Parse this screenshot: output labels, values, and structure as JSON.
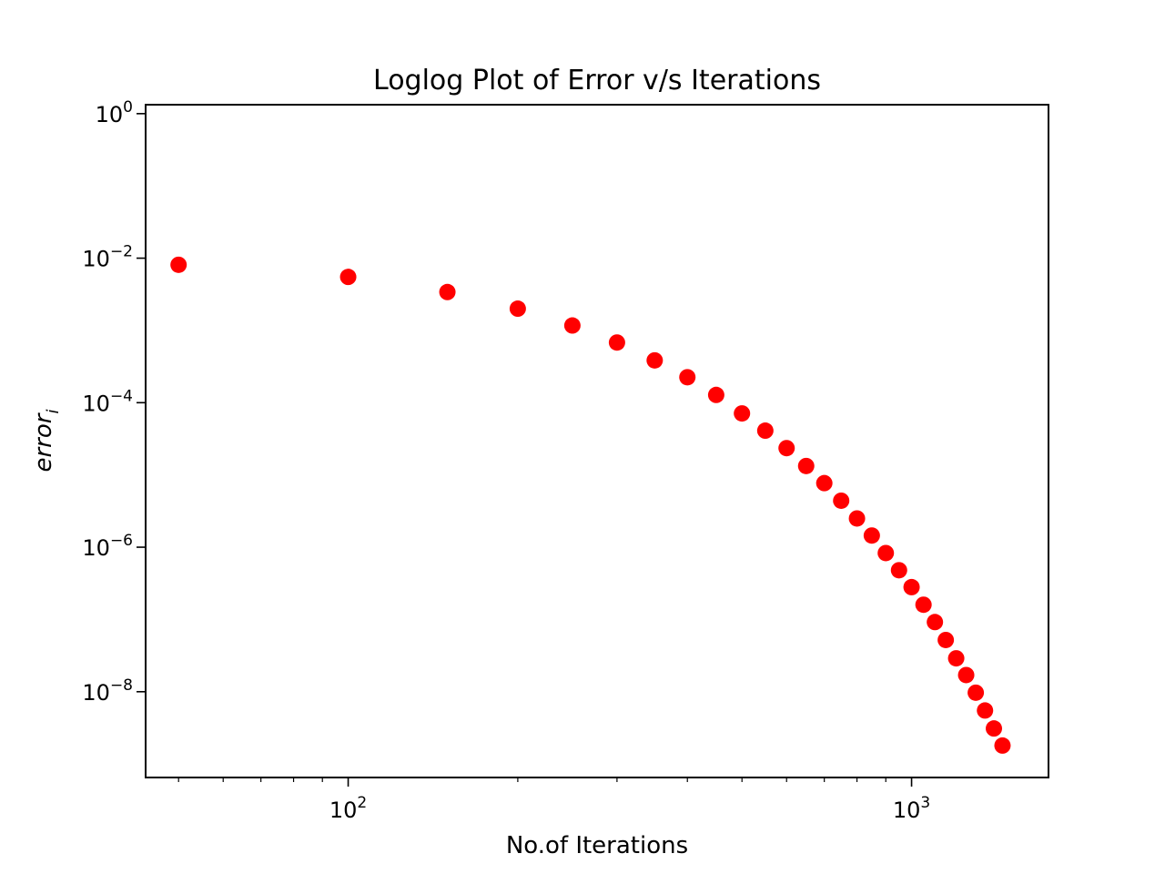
{
  "chart_data": {
    "type": "scatter",
    "title": "Loglog Plot of Error v/s Iterations",
    "xlabel": "No.of Iterations",
    "ylabel_main": "error",
    "ylabel_sub": "i",
    "x_scale": "log",
    "y_scale": "log",
    "xlim": [
      43.7,
      1750
    ],
    "ylim": [
      6.5e-10,
      1.33
    ],
    "grid": false,
    "marker_color": "#ff0000",
    "x_ticks": [
      {
        "value": 100,
        "base": "10",
        "exp": "2"
      },
      {
        "value": 1000,
        "base": "10",
        "exp": "3"
      }
    ],
    "y_ticks": [
      {
        "value": 1,
        "base": "10",
        "exp": "0"
      },
      {
        "value": 0.01,
        "base": "10",
        "exp": "−2"
      },
      {
        "value": 0.0001,
        "base": "10",
        "exp": "−4"
      },
      {
        "value": 1e-06,
        "base": "10",
        "exp": "−6"
      },
      {
        "value": 1e-08,
        "base": "10",
        "exp": "−8"
      }
    ],
    "x": [
      50,
      100,
      150,
      200,
      250,
      300,
      350,
      400,
      450,
      500,
      550,
      600,
      650,
      700,
      750,
      800,
      850,
      900,
      950,
      1000,
      1050,
      1100,
      1150,
      1200,
      1250,
      1300,
      1350,
      1400,
      1450
    ],
    "y": [
      0.0081,
      0.0055,
      0.0034,
      0.002,
      0.00117,
      0.00068,
      0.000385,
      0.000225,
      0.000128,
      7.1e-05,
      4.1e-05,
      2.35e-05,
      1.33e-05,
      7.7e-06,
      4.4e-06,
      2.5e-06,
      1.45e-06,
      8.3e-07,
      4.8e-07,
      2.8e-07,
      1.6e-07,
      9.2e-08,
      5.2e-08,
      2.9e-08,
      1.7e-08,
      9.7e-09,
      5.5e-09,
      3.1e-09,
      1.8e-09
    ]
  }
}
